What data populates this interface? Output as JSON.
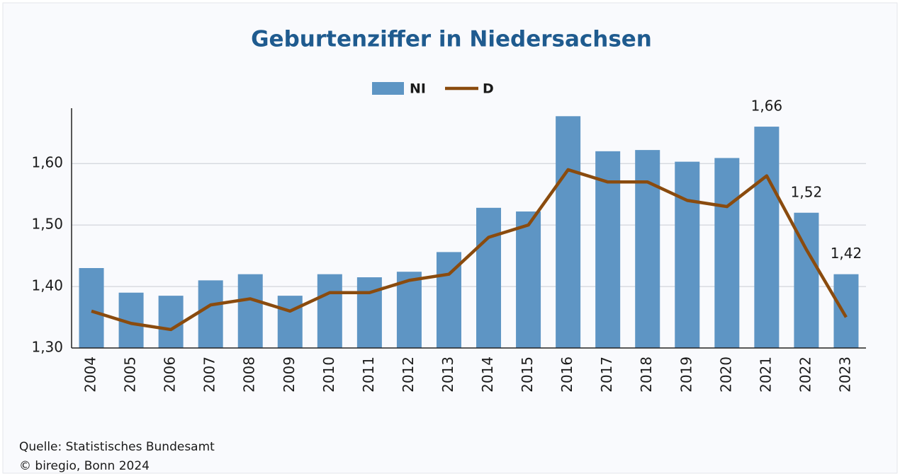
{
  "chart_data": {
    "type": "bar",
    "title": "Geburtenziffer in Niedersachsen",
    "categories": [
      "2004",
      "2005",
      "2006",
      "2007",
      "2008",
      "2009",
      "2010",
      "2011",
      "2012",
      "2013",
      "2014",
      "2015",
      "2016",
      "2017",
      "2018",
      "2019",
      "2020",
      "2021",
      "2022",
      "2023"
    ],
    "series": [
      {
        "name": "NI",
        "type": "bar",
        "color": "#5e95c4",
        "values": [
          1.43,
          1.39,
          1.385,
          1.41,
          1.42,
          1.385,
          1.42,
          1.415,
          1.424,
          1.456,
          1.528,
          1.522,
          1.677,
          1.62,
          1.622,
          1.603,
          1.609,
          1.66,
          1.52,
          1.42
        ],
        "value_labels": [
          null,
          null,
          null,
          null,
          null,
          null,
          null,
          null,
          null,
          null,
          null,
          null,
          null,
          null,
          null,
          null,
          null,
          "1,66",
          "1,52",
          "1,42"
        ]
      },
      {
        "name": "D",
        "type": "line",
        "color": "#8a4b0e",
        "values": [
          1.36,
          1.34,
          1.33,
          1.37,
          1.38,
          1.36,
          1.39,
          1.39,
          1.41,
          1.42,
          1.48,
          1.5,
          1.59,
          1.57,
          1.57,
          1.54,
          1.53,
          1.58,
          1.46,
          1.35
        ]
      }
    ],
    "ylim": [
      1.3,
      1.69
    ],
    "yticks": [
      {
        "value": 1.3,
        "label": "1,30"
      },
      {
        "value": 1.4,
        "label": "1,40"
      },
      {
        "value": 1.5,
        "label": "1,50"
      },
      {
        "value": 1.6,
        "label": "1,60"
      }
    ],
    "grid": true,
    "legend": "top",
    "notes": [
      "Quelle: Statistisches Bundesamt",
      "© biregio, Bonn 2024"
    ]
  }
}
